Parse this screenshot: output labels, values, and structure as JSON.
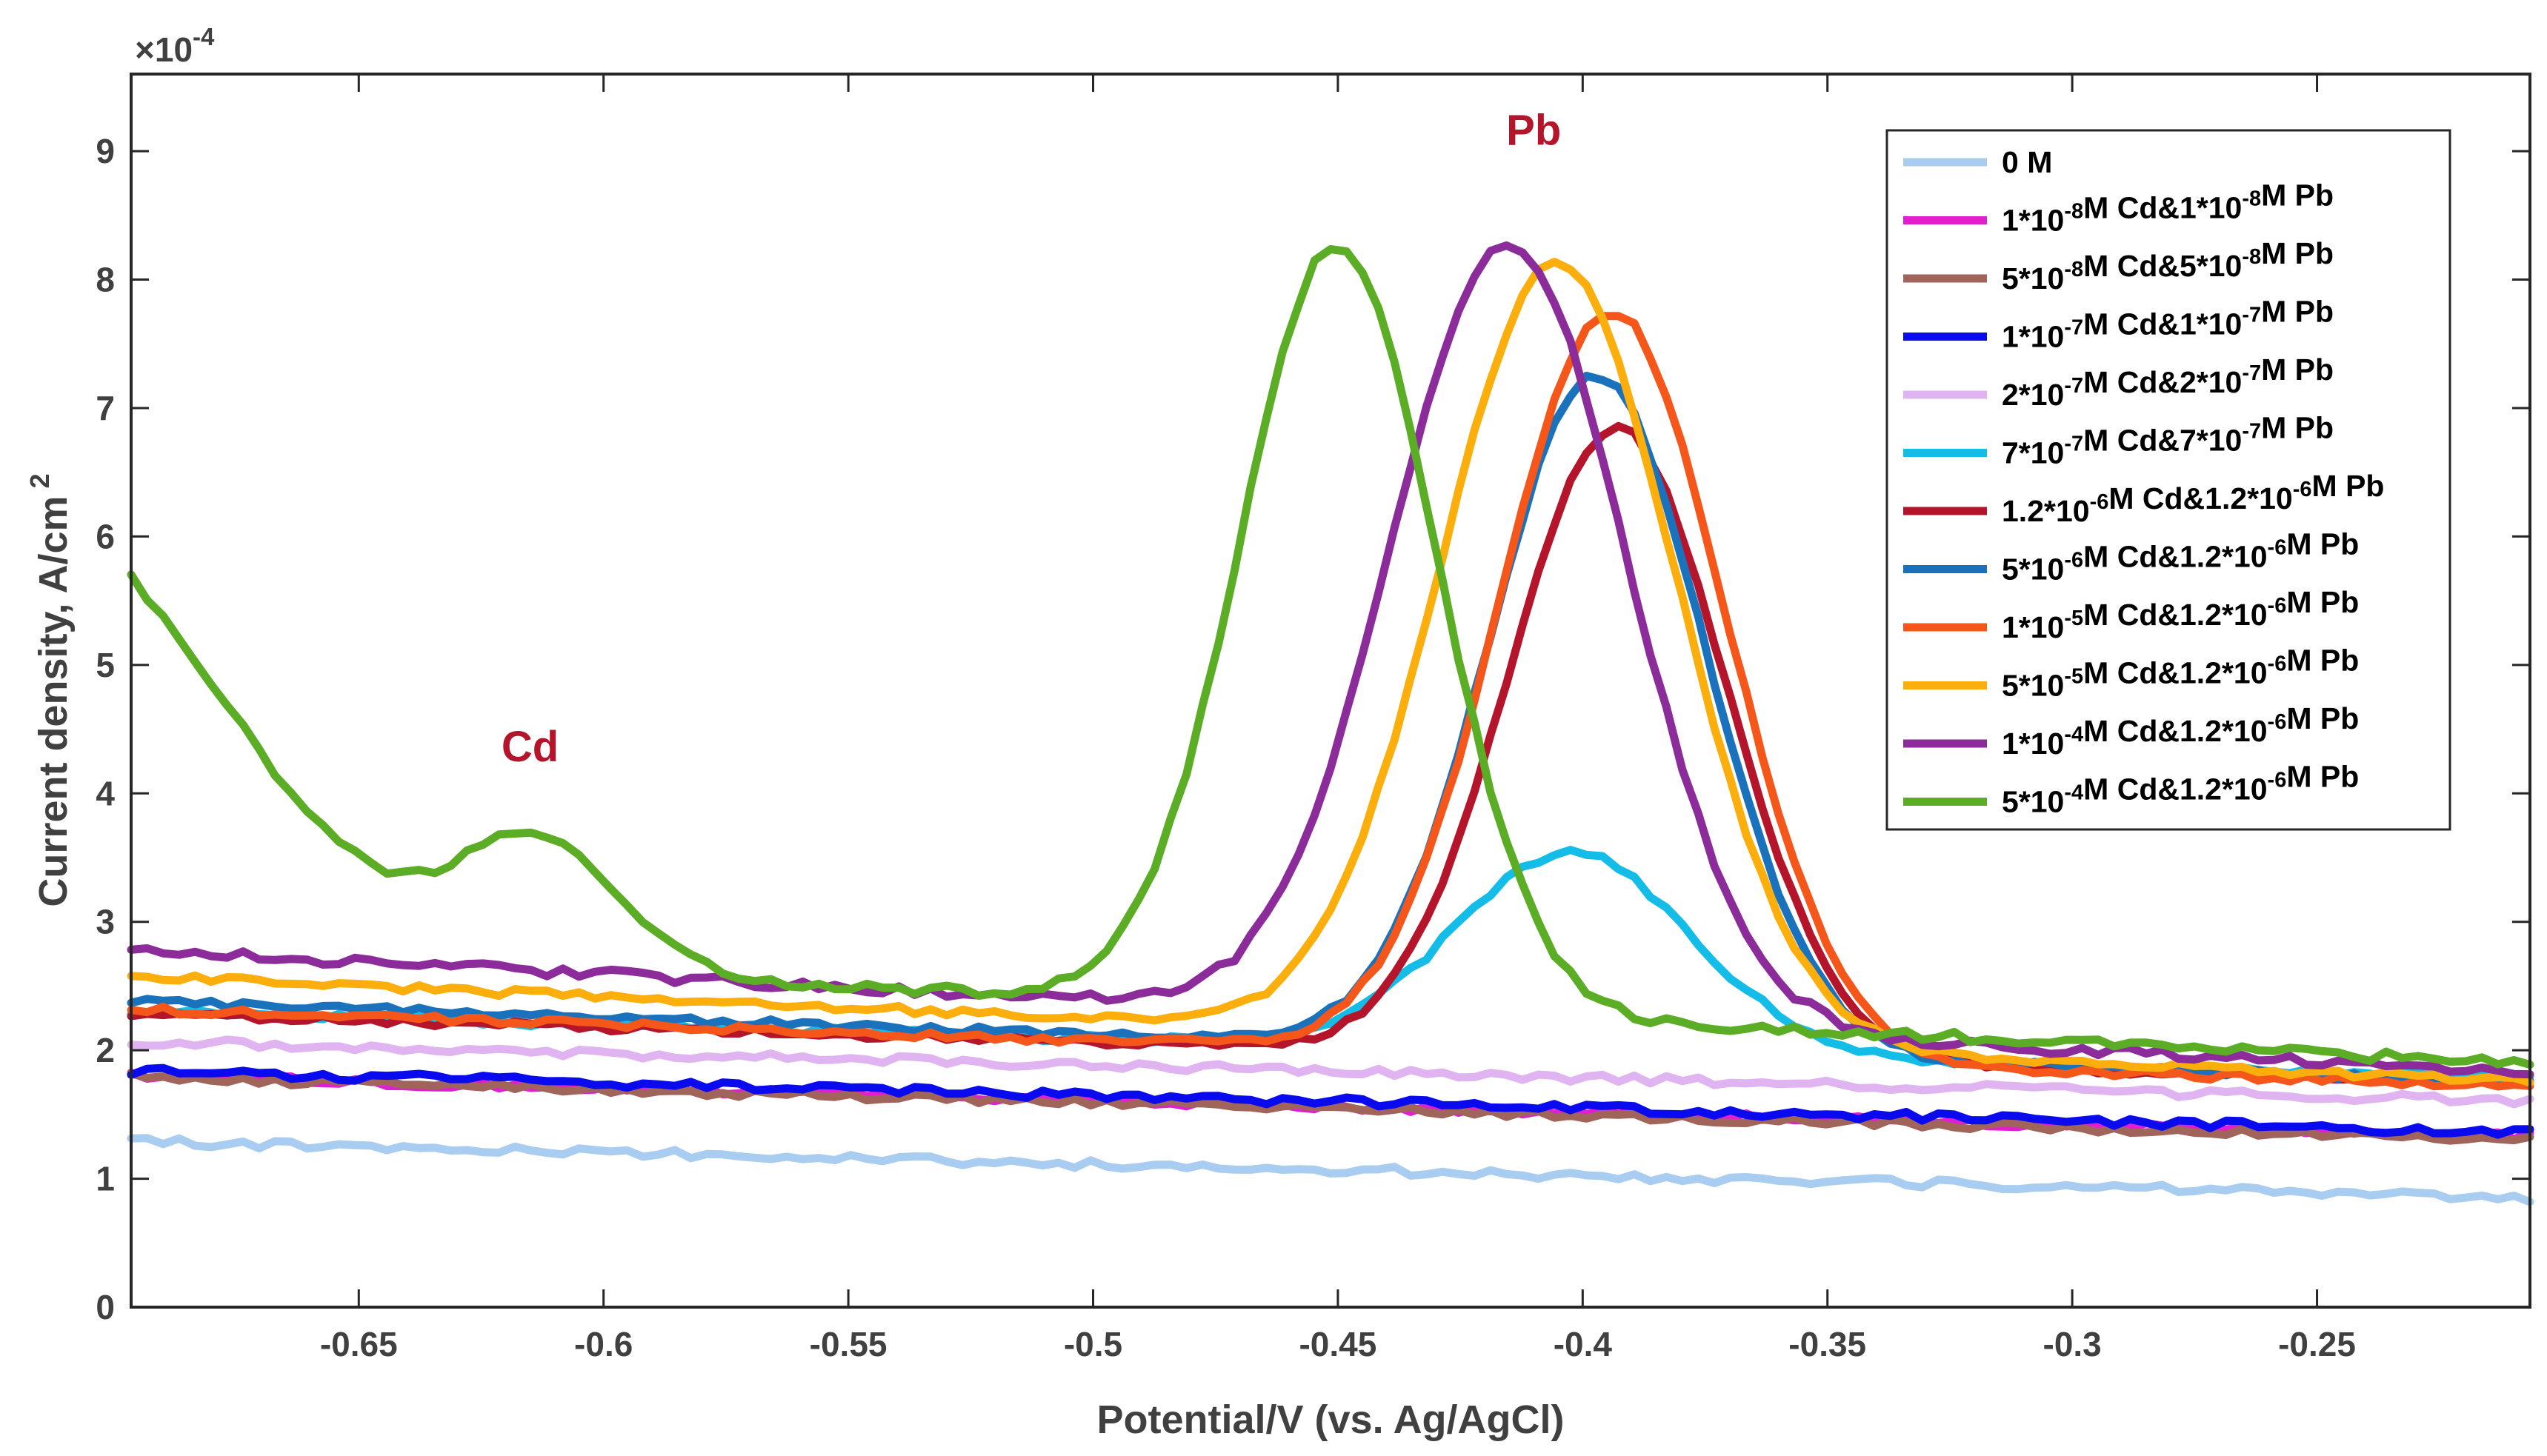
{
  "chart_data": {
    "type": "line",
    "title": "",
    "xlabel": "Potential/V (vs. Ag/AgCl)",
    "ylabel_main": "Current density, A/cm",
    "ylabel_sup": "2",
    "exponent_prefix": "×10",
    "exponent_sup": "-4",
    "xlim": [
      -0.6965,
      -0.2065
    ],
    "ylim": [
      0,
      9.6
    ],
    "x_ticks": [
      -0.65,
      -0.6,
      -0.55,
      -0.5,
      -0.45,
      -0.4,
      -0.35,
      -0.3,
      -0.25
    ],
    "x_tick_labels": [
      "-0.65",
      "-0.6",
      "-0.55",
      "-0.5",
      "-0.45",
      "-0.4",
      "-0.35",
      "-0.3",
      "-0.25"
    ],
    "y_ticks": [
      0,
      1,
      2,
      3,
      4,
      5,
      6,
      7,
      8,
      9
    ],
    "y_tick_labels": [
      "0",
      "1",
      "2",
      "3",
      "4",
      "5",
      "6",
      "7",
      "8",
      "9"
    ],
    "annotations": [
      {
        "text": "Cd",
        "x": -0.615,
        "y": 4.25,
        "color": "#b5152b"
      },
      {
        "text": "Pb",
        "x": -0.41,
        "y": 9.05,
        "color": "#b5152b"
      }
    ],
    "legend_position": "top-right",
    "series": [
      {
        "name": "0 M",
        "parts": [
          [
            "0 M",
            ""
          ]
        ],
        "color": "#a8cdf0",
        "base": [
          1.29,
          0.85
        ],
        "noise": 0.035,
        "peaks": []
      },
      {
        "name": "1*10-8M Cd&1*10-8M Pb",
        "parts": [
          [
            "1*10",
            ""
          ],
          [
            "-8",
            "sup"
          ],
          [
            "M Cd&1*10",
            ""
          ],
          [
            "-8",
            "sup"
          ],
          [
            "M Pb",
            ""
          ]
        ],
        "color": "#e020d0",
        "base": [
          1.8,
          1.33
        ],
        "noise": 0.03,
        "peaks": []
      },
      {
        "name": "5*10-8M Cd&5*10-8M Pb",
        "parts": [
          [
            "5*10",
            ""
          ],
          [
            "-8",
            "sup"
          ],
          [
            "M Cd&5*10",
            ""
          ],
          [
            "-8",
            "sup"
          ],
          [
            "M Pb",
            ""
          ]
        ],
        "color": "#a0645a",
        "base": [
          1.79,
          1.3
        ],
        "noise": 0.03,
        "peaks": []
      },
      {
        "name": "1*10-7M Cd&1*10-7M Pb",
        "parts": [
          [
            "1*10",
            ""
          ],
          [
            "-7",
            "sup"
          ],
          [
            "M Cd&1*10",
            ""
          ],
          [
            "-7",
            "sup"
          ],
          [
            "M Pb",
            ""
          ]
        ],
        "color": "#0a0aee",
        "base": [
          1.84,
          1.36
        ],
        "noise": 0.035,
        "peaks": []
      },
      {
        "name": "2*10-7M Cd&2*10-7M Pb",
        "parts": [
          [
            "2*10",
            ""
          ],
          [
            "-7",
            "sup"
          ],
          [
            "M Cd&2*10",
            ""
          ],
          [
            "-7",
            "sup"
          ],
          [
            "M Pb",
            ""
          ]
        ],
        "color": "#e0b4f0",
        "base": [
          2.07,
          1.6
        ],
        "noise": 0.035,
        "peaks": []
      },
      {
        "name": "7*10-7M Cd&7*10-7M Pb",
        "parts": [
          [
            "7*10",
            ""
          ],
          [
            "-7",
            "sup"
          ],
          [
            "M Cd&7*10",
            ""
          ],
          [
            "-7",
            "sup"
          ],
          [
            "M Pb",
            ""
          ]
        ],
        "color": "#14bce8",
        "base": [
          2.3,
          1.78
        ],
        "noise": 0.03,
        "peaks": [
          [
            1.55,
            -0.402,
            0.024
          ]
        ]
      },
      {
        "name": "1.2*10-6M Cd&1.2*10-6M Pb",
        "parts": [
          [
            "1.2*10",
            ""
          ],
          [
            "-6",
            "sup"
          ],
          [
            "M Cd&1.2*10",
            ""
          ],
          [
            "-6",
            "sup"
          ],
          [
            "M Pb",
            ""
          ]
        ],
        "color": "#b5152b",
        "base": [
          2.28,
          1.75
        ],
        "noise": 0.03,
        "peaks": [
          [
            4.9,
            -0.393,
            0.022
          ]
        ]
      },
      {
        "name": "5*10-6M Cd&1.2*10-6M Pb",
        "parts": [
          [
            "5*10",
            ""
          ],
          [
            "-6",
            "sup"
          ],
          [
            "M Cd&1.2*10",
            ""
          ],
          [
            "-6",
            "sup"
          ],
          [
            "M Pb",
            ""
          ]
        ],
        "color": "#1a72bd",
        "base": [
          2.38,
          1.75
        ],
        "noise": 0.03,
        "peaks": [
          [
            5.25,
            -0.397,
            0.022
          ]
        ]
      },
      {
        "name": "1*10-5M Cd&1.2*10-6M Pb",
        "parts": [
          [
            "1*10",
            ""
          ],
          [
            "-5",
            "sup"
          ],
          [
            "M Cd&1.2*10",
            ""
          ],
          [
            "-6",
            "sup"
          ],
          [
            "M Pb",
            ""
          ]
        ],
        "color": "#f5561a",
        "base": [
          2.32,
          1.72
        ],
        "noise": 0.03,
        "peaks": [
          [
            5.8,
            -0.394,
            0.023
          ]
        ]
      },
      {
        "name": "5*10-5M Cd&1.2*10-6M Pb",
        "parts": [
          [
            "5*10",
            ""
          ],
          [
            "-5",
            "sup"
          ],
          [
            "M Cd&1.2*10",
            ""
          ],
          [
            "-6",
            "sup"
          ],
          [
            "M Pb",
            ""
          ]
        ],
        "color": "#fbae0c",
        "base": [
          2.58,
          1.75
        ],
        "noise": 0.03,
        "peaks": [
          [
            6.05,
            -0.405,
            0.024
          ]
        ]
      },
      {
        "name": "1*10-4M Cd&1.2*10-6M Pb",
        "parts": [
          [
            "1*10",
            ""
          ],
          [
            "-4",
            "sup"
          ],
          [
            "M Cd&1.2*10",
            ""
          ],
          [
            "-6",
            "sup"
          ],
          [
            "M Pb",
            ""
          ]
        ],
        "color": "#8b2c9a",
        "base": [
          2.78,
          1.82
        ],
        "noise": 0.04,
        "peaks": [
          [
            6.05,
            -0.415,
            0.024
          ]
        ]
      },
      {
        "name": "5*10-4M Cd&1.2*10-6M Pb",
        "parts": [
          [
            "5*10",
            ""
          ],
          [
            "-4",
            "sup"
          ],
          [
            "M Cd&1.2*10",
            ""
          ],
          [
            "-6",
            "sup"
          ],
          [
            "M Pb",
            ""
          ]
        ],
        "color": "#5aad24",
        "base": [
          2.75,
          1.9
        ],
        "noise": 0.04,
        "peaks": [
          [
            3.5,
            -0.72,
            0.04
          ],
          [
            1.0,
            -0.613,
            0.016
          ],
          [
            5.95,
            -0.45,
            0.02
          ]
        ]
      }
    ]
  }
}
